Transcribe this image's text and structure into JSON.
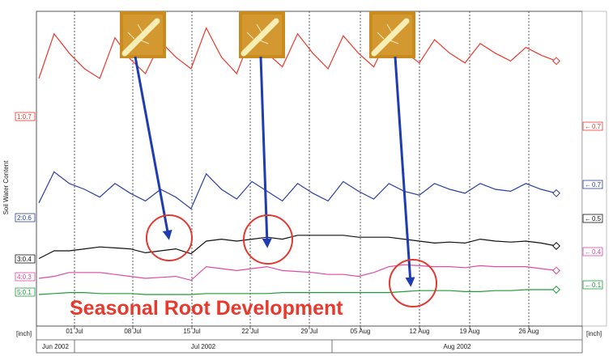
{
  "chart_data": {
    "type": "line",
    "ylabel": "Soil Water Content",
    "x_unit_label": "[inch]",
    "right_unit_label": "[inch]",
    "x_ticks": [
      "01 Jul",
      "08 Jul",
      "15 Jul",
      "22 Jul",
      "29 Jul",
      "05 Aug",
      "12 Aug",
      "19 Aug",
      "26 Aug"
    ],
    "months": [
      "Jun 2002",
      "Jul 2002",
      "Aug 2002"
    ],
    "annotation": "Seasonal Root Development",
    "grid": "vertical dotted weekly",
    "series": [
      {
        "left_label": "1:0.7",
        "right_label": "0.7",
        "color": "#e8392d",
        "values": [
          0.4,
          0.86,
          0.66,
          0.5,
          0.4,
          0.82,
          0.6,
          0.45,
          0.78,
          0.62,
          0.5,
          0.92,
          0.62,
          0.45,
          0.86,
          0.66,
          0.52,
          0.86,
          0.66,
          0.5,
          0.84,
          0.66,
          0.52,
          0.84,
          0.68,
          0.56,
          0.8,
          0.66,
          0.56,
          0.76,
          0.66,
          0.58,
          0.72,
          0.64,
          0.58
        ]
      },
      {
        "left_label": "2:0.6",
        "right_label": "0.7",
        "color": "#2b3f9e",
        "values": [
          0.16,
          0.48,
          0.36,
          0.3,
          0.22,
          0.36,
          0.26,
          0.18,
          0.3,
          0.22,
          0.1,
          0.46,
          0.3,
          0.2,
          0.38,
          0.28,
          0.18,
          0.36,
          0.26,
          0.18,
          0.38,
          0.28,
          0.2,
          0.36,
          0.28,
          0.24,
          0.36,
          0.3,
          0.26,
          0.36,
          0.3,
          0.28,
          0.36,
          0.3,
          0.26
        ]
      },
      {
        "left_label": "3:0.4",
        "right_label": "0.5",
        "color": "#111111",
        "values": [
          0.02,
          0.1,
          0.1,
          0.12,
          0.14,
          0.13,
          0.12,
          0.08,
          0.1,
          0.12,
          0.07,
          0.2,
          0.22,
          0.2,
          0.22,
          0.24,
          0.22,
          0.26,
          0.26,
          0.26,
          0.26,
          0.24,
          0.24,
          0.24,
          0.22,
          0.2,
          0.18,
          0.19,
          0.18,
          0.22,
          0.2,
          0.19,
          0.2,
          0.18,
          0.15
        ]
      },
      {
        "left_label": "4:0.3",
        "right_label": "0.4",
        "color": "#e04aa2",
        "values": [
          0.0,
          0.02,
          0.06,
          0.06,
          0.06,
          0.04,
          0.02,
          0.0,
          0.01,
          0.02,
          -0.02,
          0.12,
          0.1,
          0.08,
          0.1,
          0.12,
          0.08,
          0.07,
          0.06,
          0.04,
          0.04,
          0.02,
          0.06,
          0.12,
          0.14,
          0.13,
          0.12,
          0.12,
          0.11,
          0.13,
          0.12,
          0.12,
          0.12,
          0.1,
          0.08
        ]
      },
      {
        "left_label": "5:0.1",
        "right_label": "0.1",
        "color": "#1e9e3a",
        "values": [
          0.0,
          0.01,
          0.02,
          0.02,
          0.01,
          0.01,
          0.01,
          0.0,
          0.0,
          0.0,
          0.0,
          0.01,
          0.01,
          0.01,
          0.01,
          0.01,
          0.02,
          0.02,
          0.02,
          0.02,
          0.02,
          0.02,
          0.02,
          0.02,
          0.03,
          0.04,
          0.04,
          0.04,
          0.03,
          0.03,
          0.04,
          0.04,
          0.05,
          0.05,
          0.05
        ]
      }
    ]
  }
}
